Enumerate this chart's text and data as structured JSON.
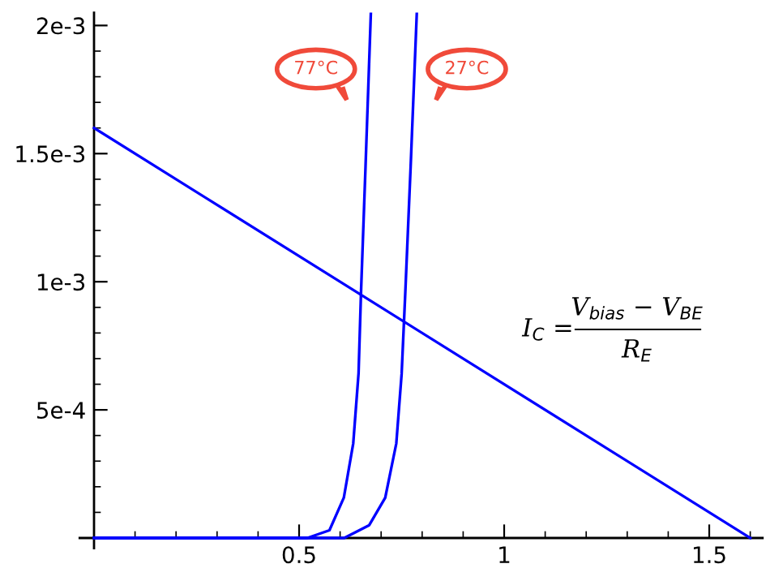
{
  "chart_data": {
    "type": "line",
    "series": [
      {
        "color": "#0000ff",
        "x": [
          0,
          0.5,
          0.52,
          0.574,
          0.609,
          0.632,
          0.645,
          0.651,
          0.662,
          0.675
        ],
        "values": [
          0,
          0,
          0,
          3e-05,
          0.000157,
          0.000369,
          0.000643,
          0.00096,
          0.00145,
          0.00205
        ]
      },
      {
        "color": "#0000ff",
        "x": [
          0,
          0.5,
          0.61,
          0.671,
          0.71,
          0.737,
          0.75,
          0.759,
          0.772,
          0.787
        ],
        "values": [
          0,
          0,
          0,
          5e-05,
          0.000157,
          0.000369,
          0.00064,
          0.00096,
          0.00145,
          0.00205
        ]
      },
      {
        "color": "#0000ff",
        "x": [
          0,
          1.6
        ],
        "values": [
          0.0016,
          0
        ]
      }
    ],
    "xlim": [
      -0.035,
      1.63
    ],
    "ylim": [
      -4e-05,
      0.00205
    ],
    "xticks": [
      {
        "value": 0.1,
        "label": null
      },
      {
        "value": 0.2,
        "label": null
      },
      {
        "value": 0.3,
        "label": null
      },
      {
        "value": 0.4,
        "label": null
      },
      0.5,
      {
        "value": 0.6,
        "label": null
      },
      {
        "value": 0.7,
        "label": null
      },
      {
        "value": 0.8,
        "label": null
      },
      {
        "value": 0.9,
        "label": null
      },
      1,
      {
        "value": 1.1,
        "label": null
      },
      {
        "value": 1.2,
        "label": null
      },
      {
        "value": 1.3,
        "label": null
      },
      {
        "value": 1.4,
        "label": null
      },
      1.5,
      {
        "value": 1.6,
        "label": null
      }
    ],
    "yticks": [
      {
        "value": 0.0001,
        "label": null
      },
      {
        "value": 0.0002,
        "label": null
      },
      {
        "value": 0.0003,
        "label": null
      },
      {
        "value": 0.0004,
        "label": null
      },
      {
        "value": 0.0005,
        "label": "5e-4"
      },
      {
        "value": 0.0006,
        "label": null
      },
      {
        "value": 0.0007,
        "label": null
      },
      {
        "value": 0.0008,
        "label": null
      },
      {
        "value": 0.0009,
        "label": null
      },
      {
        "value": 0.001,
        "label": "1e-3"
      },
      {
        "value": 0.0011,
        "label": null
      },
      {
        "value": 0.0012,
        "label": null
      },
      {
        "value": 0.0013,
        "label": null
      },
      {
        "value": 0.0014,
        "label": null
      },
      {
        "value": 0.0015,
        "label": "1.5e-3"
      },
      {
        "value": 0.0016,
        "label": null
      },
      {
        "value": 0.0017,
        "label": null
      },
      {
        "value": 0.0018,
        "label": null
      },
      {
        "value": 0.0019,
        "label": null
      },
      {
        "value": 0.002,
        "label": "2e-3"
      }
    ],
    "annotations": [
      "77°C",
      "27°C",
      "I$_{C}$ =",
      "V$_{bias}$ − V$_{BE}$",
      "R$_{E}$"
    ],
    "grid": false,
    "legend": false
  }
}
